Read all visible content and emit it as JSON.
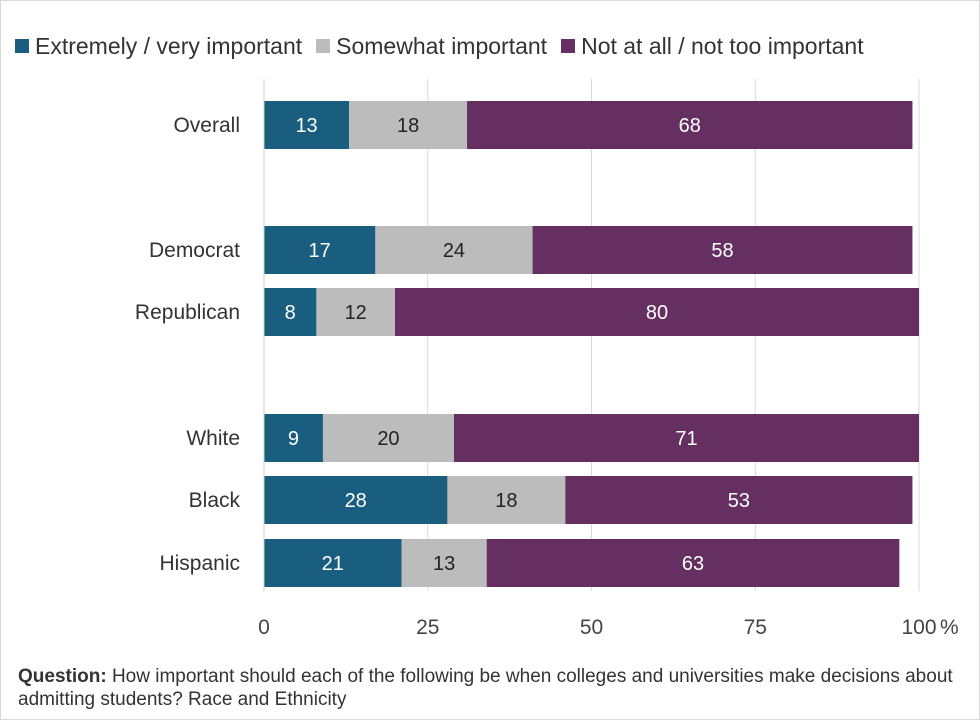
{
  "chart_data": {
    "type": "bar",
    "orientation": "horizontal",
    "stacked": true,
    "categories": [
      "Overall",
      "Democrat",
      "Republican",
      "White",
      "Black",
      "Hispanic"
    ],
    "groups": [
      [
        "Overall"
      ],
      [
        "Democrat",
        "Republican"
      ],
      [
        "White",
        "Black",
        "Hispanic"
      ]
    ],
    "series": [
      {
        "name": "Extremely / very important",
        "color": "#1a5e7f",
        "label_color": "#ffffff",
        "values": [
          13,
          17,
          8,
          9,
          28,
          21
        ]
      },
      {
        "name": "Somewhat important",
        "color": "#bcbcbc",
        "label_color": "#222222",
        "values": [
          18,
          24,
          12,
          20,
          18,
          13
        ]
      },
      {
        "name": "Not at all / not too important",
        "color": "#662f62",
        "label_color": "#ffffff",
        "values": [
          68,
          58,
          80,
          71,
          53,
          63
        ]
      }
    ],
    "x_ticks": [
      "0",
      "25",
      "50",
      "75",
      "100"
    ],
    "x_unit": "%",
    "xlim": [
      0,
      100
    ],
    "grid": true,
    "legend_position": "top",
    "title": "",
    "xlabel": "",
    "ylabel": ""
  },
  "caption": {
    "label": "Question:",
    "text": " How important should each of the following be when colleges and universities make decisions about admitting students? Race and Ethnicity"
  }
}
